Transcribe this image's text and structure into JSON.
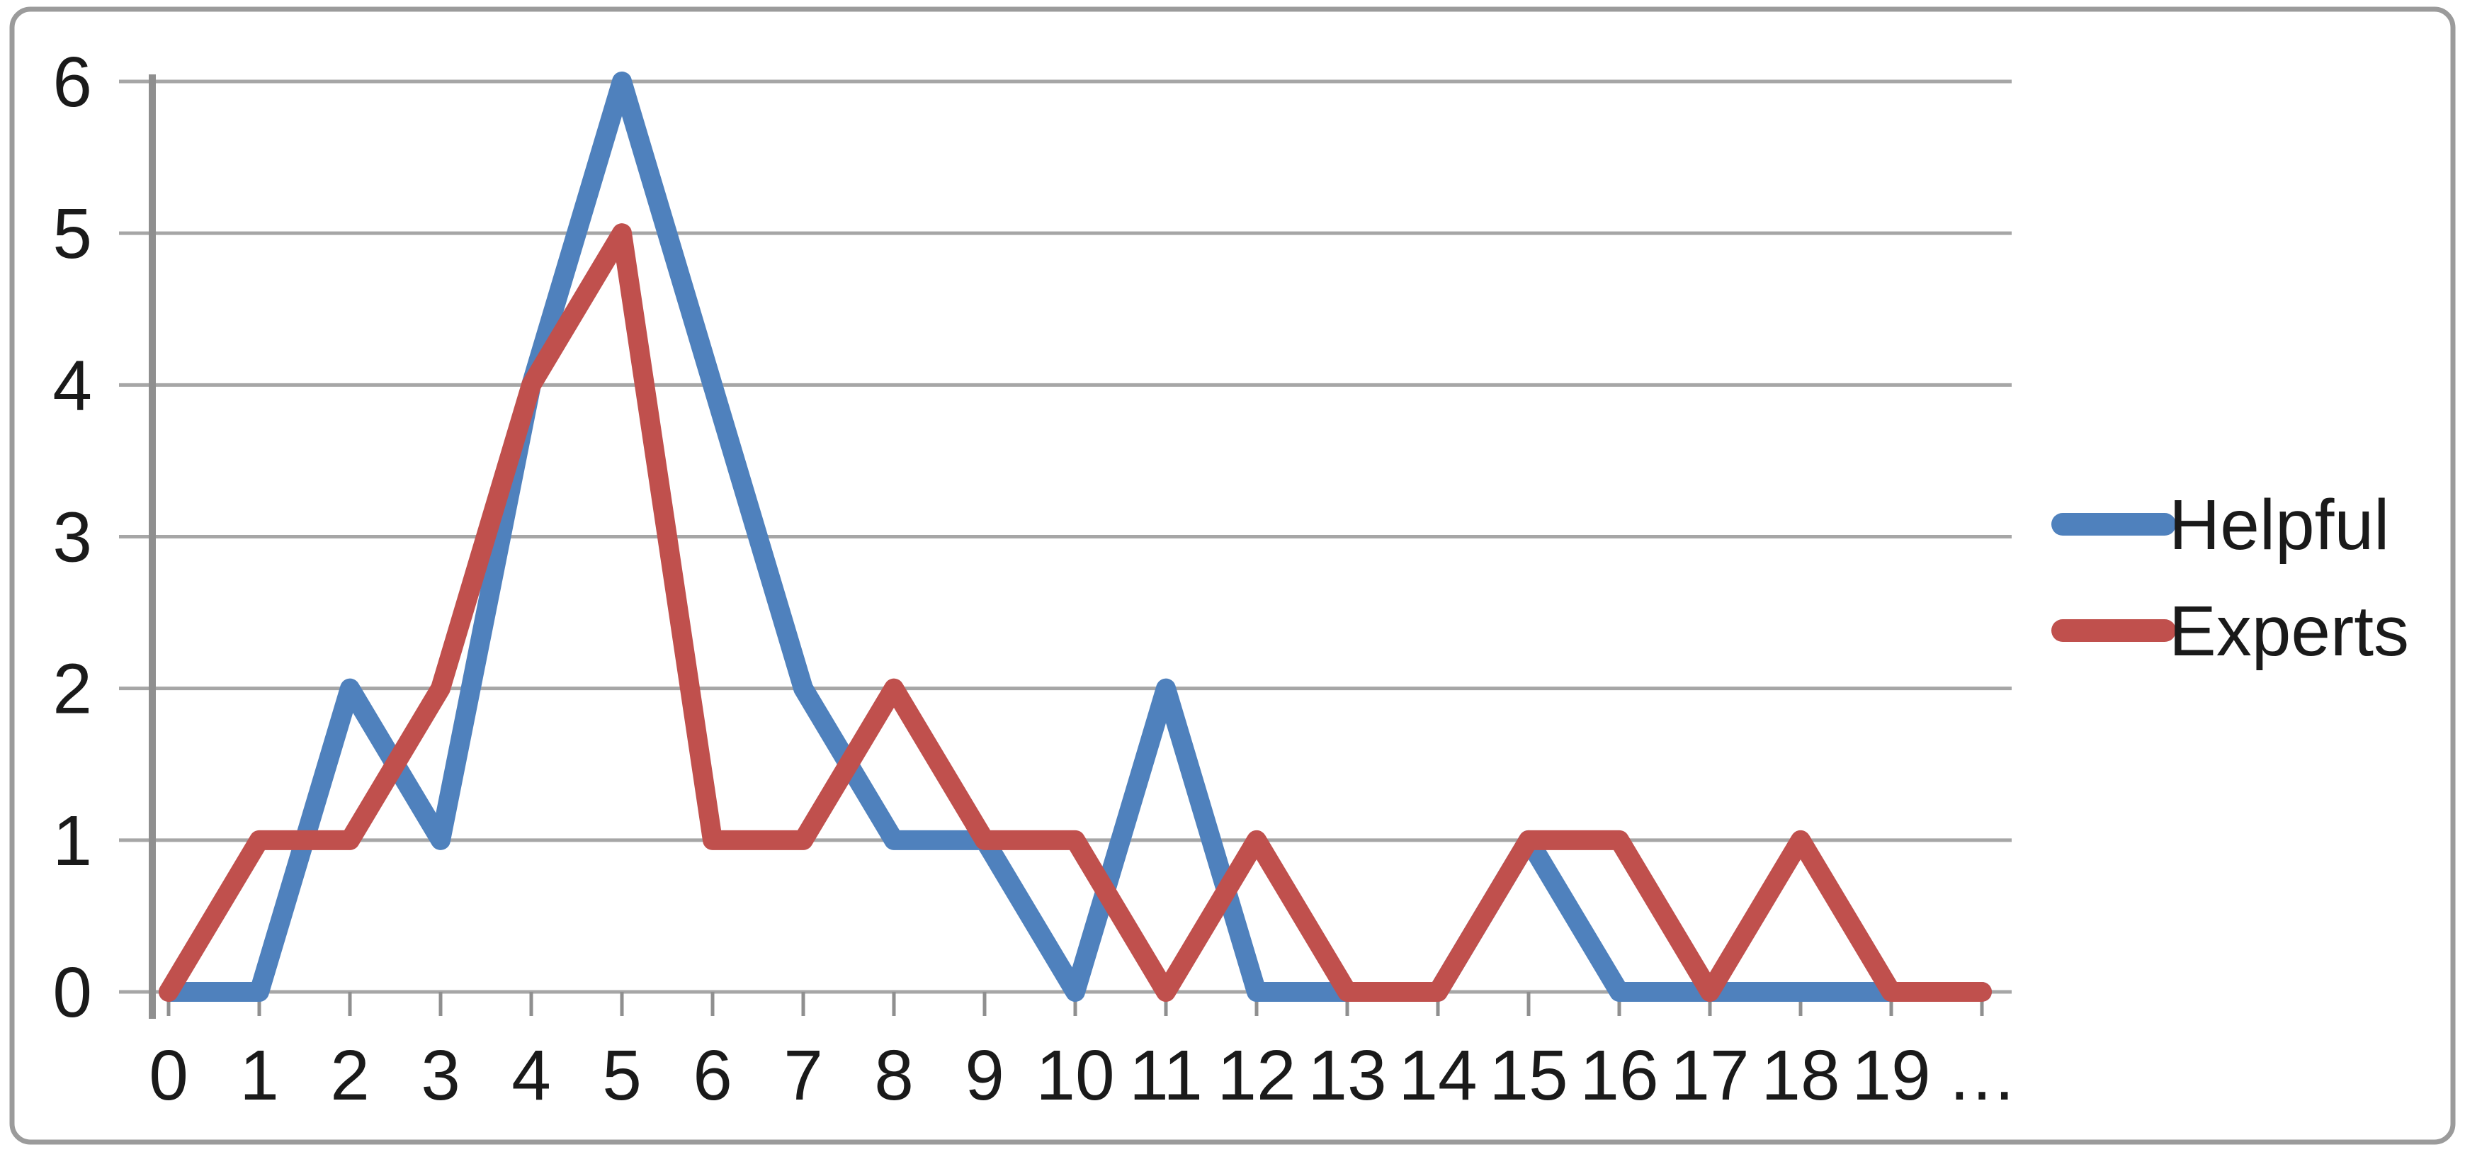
{
  "figure": {
    "background": "#ffffff",
    "border_color": "#9b9b9b"
  },
  "colors": {
    "gridline": "#a6a6a6",
    "axis": "#8f8f8f",
    "text": "#1a1a1a"
  },
  "chart_data": {
    "type": "line",
    "title": "",
    "xlabel": "",
    "ylabel": "",
    "categories": [
      "0",
      "1",
      "2",
      "3",
      "4",
      "5",
      "6",
      "7",
      "8",
      "9",
      "10",
      "11",
      "12",
      "13",
      "14",
      "15",
      "16",
      "17",
      "18",
      "19",
      "…"
    ],
    "series": [
      {
        "name": "Helpful",
        "color": "#4F81BD",
        "values": [
          0,
          0,
          2,
          1,
          4,
          6,
          4,
          2,
          1,
          1,
          0,
          2,
          0,
          0,
          0,
          1,
          0,
          0,
          0,
          0,
          0
        ]
      },
      {
        "name": "Experts",
        "color": "#C0504D",
        "values": [
          0,
          1,
          1,
          2,
          4,
          5,
          1,
          1,
          2,
          1,
          1,
          0,
          1,
          0,
          0,
          1,
          1,
          0,
          1,
          0,
          0
        ]
      }
    ],
    "ylim": [
      0,
      6
    ],
    "yticks": [
      0,
      1,
      2,
      3,
      4,
      5,
      6
    ],
    "grid": true,
    "legend_position": "right"
  }
}
